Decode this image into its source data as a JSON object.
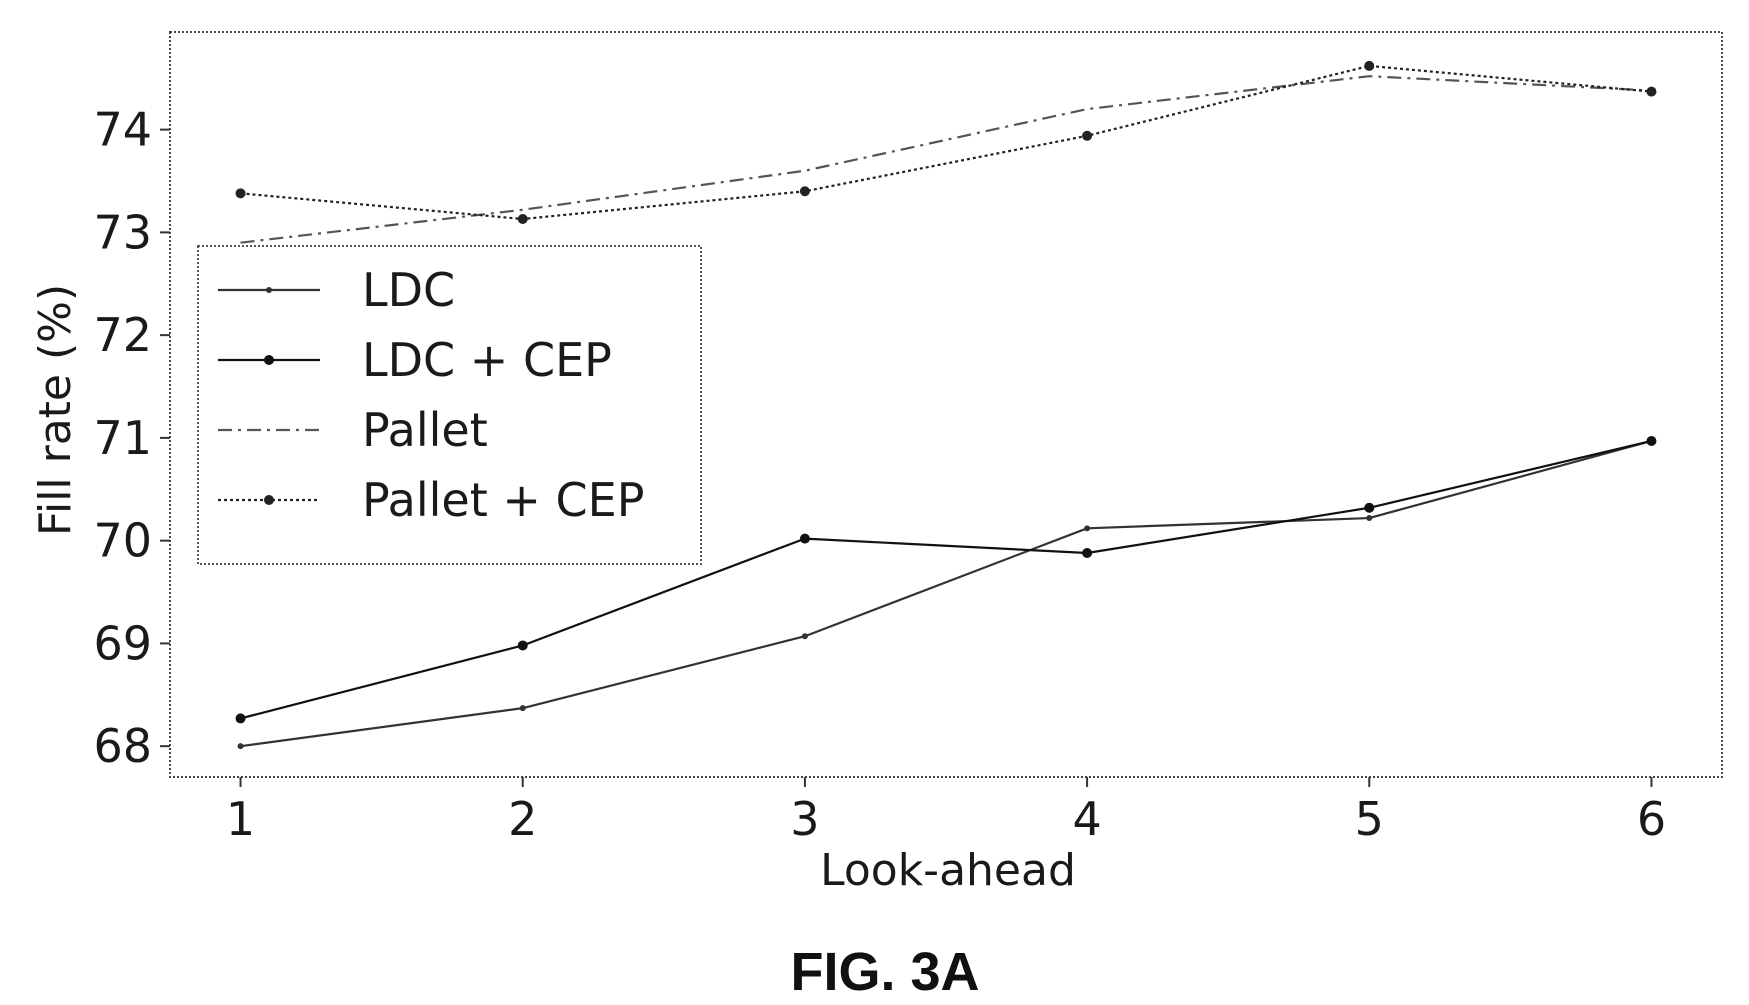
{
  "figure_caption": "FIG. 3A",
  "chart_data": {
    "type": "line",
    "xlabel": "Look-ahead",
    "ylabel": "Fill rate (%)",
    "x": [
      1,
      2,
      3,
      4,
      5,
      6
    ],
    "x_ticks": [
      "1",
      "2",
      "3",
      "4",
      "5",
      "6"
    ],
    "y_ticks": [
      "68",
      "69",
      "70",
      "71",
      "72",
      "73",
      "74"
    ],
    "y_tick_values": [
      68,
      69,
      70,
      71,
      72,
      73,
      74
    ],
    "xlim": [
      0.75,
      6.25
    ],
    "ylim": [
      67.7,
      74.95
    ],
    "grid": false,
    "legend_position": "center-left",
    "series": [
      {
        "name": "LDC",
        "values": [
          68.0,
          68.37,
          69.07,
          70.12,
          70.22,
          70.97
        ],
        "line_style": "solid",
        "marker": "small",
        "color": "#333333"
      },
      {
        "name": "LDC + CEP",
        "values": [
          68.27,
          68.98,
          70.02,
          69.88,
          70.32,
          70.97
        ],
        "line_style": "solid",
        "marker": "dot",
        "color": "#111111"
      },
      {
        "name": "Pallet",
        "values": [
          72.9,
          73.22,
          73.6,
          74.2,
          74.52,
          74.38
        ],
        "line_style": "dashdot",
        "marker": "none",
        "color": "#555555"
      },
      {
        "name": "Pallet + CEP",
        "values": [
          73.38,
          73.13,
          73.4,
          73.94,
          74.62,
          74.37
        ],
        "line_style": "dotted",
        "marker": "dot",
        "color": "#222222"
      }
    ]
  }
}
